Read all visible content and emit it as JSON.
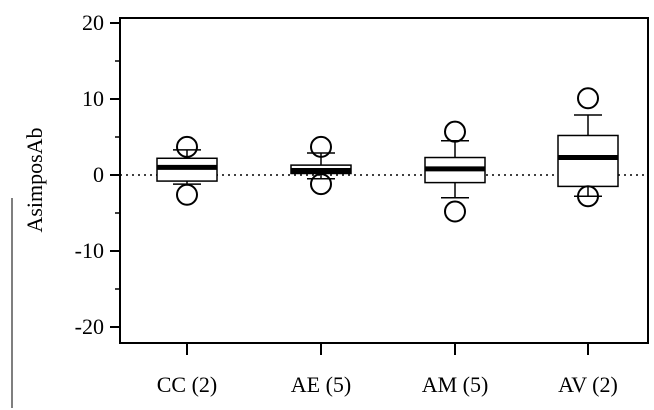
{
  "chart_data": {
    "type": "boxplot",
    "title": "",
    "xlabel": "",
    "ylabel": "AsimposAb",
    "ylim": [
      -22,
      22
    ],
    "yticks": [
      -20,
      -10,
      0,
      10,
      20
    ],
    "reference_line": {
      "y": 0,
      "style": "dotted"
    },
    "grid": false,
    "categories": [
      "CC (2)",
      "AE (5)",
      "AM (5)",
      "AV (2)"
    ],
    "boxes": [
      {
        "category": "CC (2)",
        "whisker_low": -1.2,
        "q1": -0.8,
        "median": 1.0,
        "q3": 2.2,
        "whisker_high": 3.3,
        "outliers": [
          3.7,
          -2.6
        ]
      },
      {
        "category": "AE (5)",
        "whisker_low": -0.5,
        "q1": 0.2,
        "median": 0.6,
        "q3": 1.3,
        "whisker_high": 2.9,
        "outliers": [
          3.7,
          -1.2
        ]
      },
      {
        "category": "AM (5)",
        "whisker_low": -3.0,
        "q1": -1.0,
        "median": 0.8,
        "q3": 2.3,
        "whisker_high": 4.5,
        "outliers": [
          5.7,
          -4.8
        ]
      },
      {
        "category": "AV (2)",
        "whisker_low": -2.8,
        "q1": -1.5,
        "median": 2.3,
        "q3": 5.2,
        "whisker_high": 7.9,
        "outliers": [
          10.1,
          -2.8
        ]
      }
    ]
  }
}
